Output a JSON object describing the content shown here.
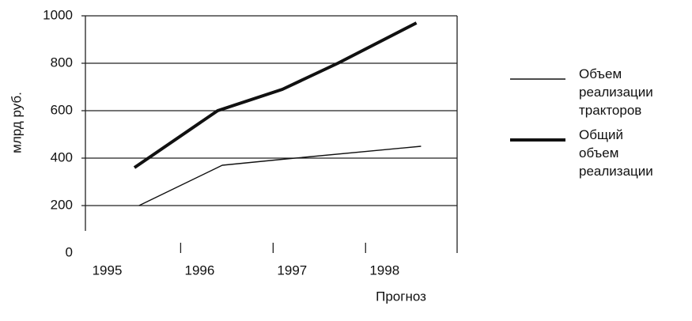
{
  "chart_data": {
    "type": "line",
    "y_label": "млрд руб.",
    "x_label": "Прогноз",
    "xlim": [
      1994.97,
      1998.99
    ],
    "xticks": [
      1995,
      1996,
      1997,
      1998
    ],
    "ylim": [
      0,
      1000
    ],
    "yticks": [
      0,
      200,
      400,
      600,
      800,
      1000
    ],
    "grid": true,
    "legend": "right",
    "series": [
      {
        "name": "Объем реализации тракторов",
        "color": "#111111",
        "width": 1.4,
        "x": [
          1995.55,
          1996.45,
          1997.1,
          1998.6
        ],
        "values": [
          200,
          370,
          395,
          450
        ]
      },
      {
        "name": "Общий объем реализации",
        "color": "#111111",
        "width": 4,
        "x": [
          1995.5,
          1996.4,
          1997.1,
          1997.7,
          1998.55
        ],
        "values": [
          360,
          600,
          690,
          800,
          970
        ]
      }
    ]
  }
}
